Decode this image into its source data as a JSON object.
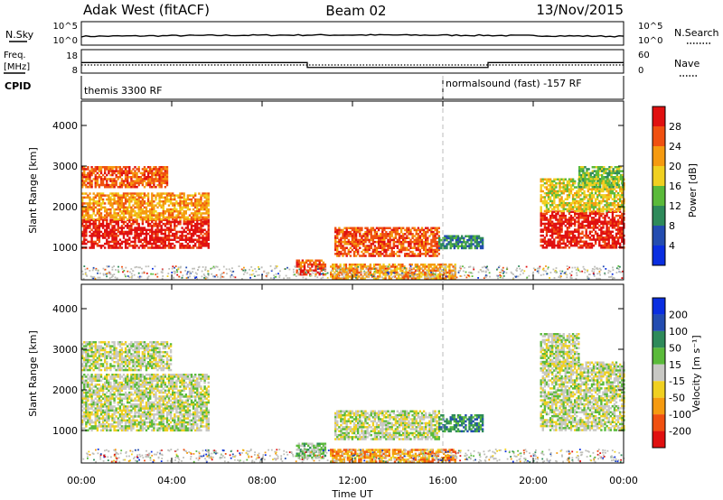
{
  "header": {
    "site": "Adak West (fitACF)",
    "beam": "Beam 02",
    "date": "13/Nov/2015"
  },
  "top_panels": {
    "nsky_label": "N.Sky",
    "nsearch_label": "N.Search",
    "freq_label_1": "Freq.",
    "freq_label_2": "[MHz]",
    "nave_label": "Nave",
    "cpid_label": "CPID",
    "noise_ticks": [
      "10^5",
      "10^0"
    ],
    "freq_ticks": [
      "18",
      "8"
    ],
    "nave_ticks": [
      "60",
      "0"
    ],
    "cpid_segments": [
      {
        "start_h": 0,
        "end_h": 16,
        "label": "themis 3300 RF"
      },
      {
        "start_h": 16,
        "end_h": 24,
        "label": "normalsound (fast) -157 RF"
      }
    ],
    "freq_steps": [
      {
        "start_h": 0,
        "end_h": 10,
        "mhz": 12.5
      },
      {
        "start_h": 10,
        "end_h": 18,
        "mhz": 10.4
      },
      {
        "start_h": 18,
        "end_h": 24,
        "mhz": 12.5
      }
    ]
  },
  "colors": {
    "power": [
      "#0a2ee0",
      "#234cb0",
      "#2e8a5a",
      "#5aba3a",
      "#f0d020",
      "#f59a10",
      "#f05010",
      "#e01010"
    ],
    "velocity": [
      "#e01010",
      "#f05010",
      "#f59a10",
      "#f0d020",
      "#c8c8c4",
      "#5aba3a",
      "#2e8a5a",
      "#234cb0",
      "#0a2ee0"
    ],
    "ground": "#bdbdb8"
  },
  "chart_data": [
    {
      "type": "heatmap",
      "name": "power",
      "ylabel": "Slant Range [km]",
      "xlabel": "Time UT",
      "x_ticks": [
        "00:00",
        "04:00",
        "08:00",
        "12:00",
        "16:00",
        "20:00",
        "00:00"
      ],
      "y_ticks": [
        "1000",
        "2000",
        "3000",
        "4000"
      ],
      "xlim": [
        0,
        24
      ],
      "ylim": [
        200,
        4600
      ],
      "colorbar_label": "Power [dB]",
      "colorbar_ticks": [
        "4",
        "8",
        "12",
        "16",
        "20",
        "24",
        "28"
      ],
      "regions": [
        {
          "t0": 0.0,
          "t1": 5.6,
          "r0": 1000,
          "r1": 1700,
          "level": 7
        },
        {
          "t0": 0.0,
          "t1": 5.6,
          "r0": 1700,
          "r1": 2350,
          "level": 5
        },
        {
          "t0": 0.0,
          "t1": 3.8,
          "r0": 2500,
          "r1": 3000,
          "level": 6
        },
        {
          "t0": 9.5,
          "t1": 10.8,
          "r0": 350,
          "r1": 700,
          "level": 6
        },
        {
          "t0": 11.2,
          "t1": 15.8,
          "r0": 800,
          "r1": 1500,
          "level": 6
        },
        {
          "t0": 15.8,
          "t1": 17.8,
          "r0": 1000,
          "r1": 1300,
          "level": 2
        },
        {
          "t0": 11.0,
          "t1": 16.5,
          "r0": 250,
          "r1": 600,
          "level": 5
        },
        {
          "t0": 20.3,
          "t1": 24.0,
          "r0": 1000,
          "r1": 1900,
          "level": 7
        },
        {
          "t0": 20.3,
          "t1": 24.0,
          "r0": 1900,
          "r1": 2700,
          "level": 4
        },
        {
          "t0": 22.0,
          "t1": 24.0,
          "r0": 2500,
          "r1": 3000,
          "level": 3
        }
      ]
    },
    {
      "type": "heatmap",
      "name": "velocity",
      "ylabel": "Slant Range [km]",
      "xlabel": "Time UT",
      "x_ticks": [
        "00:00",
        "04:00",
        "08:00",
        "12:00",
        "16:00",
        "20:00",
        "00:00"
      ],
      "y_ticks": [
        "1000",
        "2000",
        "3000",
        "4000"
      ],
      "xlim": [
        0,
        24
      ],
      "ylim": [
        200,
        4600
      ],
      "colorbar_label": "Velocity [m s⁻¹]",
      "colorbar_ticks": [
        "200",
        "100",
        "50",
        "15",
        "-15",
        "-50",
        "-100",
        "-200"
      ],
      "regions": [
        {
          "t0": 0.0,
          "t1": 5.6,
          "r0": 1000,
          "r1": 2400,
          "level": 4
        },
        {
          "t0": 0.0,
          "t1": 4.0,
          "r0": 2500,
          "r1": 3200,
          "level": 4
        },
        {
          "t0": 9.5,
          "t1": 10.8,
          "r0": 350,
          "r1": 700,
          "level": 5
        },
        {
          "t0": 11.2,
          "t1": 15.8,
          "r0": 800,
          "r1": 1500,
          "level": 4
        },
        {
          "t0": 15.8,
          "t1": 17.8,
          "r0": 1000,
          "r1": 1400,
          "level": 6
        },
        {
          "t0": 11.0,
          "t1": 16.5,
          "r0": 250,
          "r1": 550,
          "level": 2
        },
        {
          "t0": 20.3,
          "t1": 24.0,
          "r0": 1000,
          "r1": 2700,
          "level": 4
        },
        {
          "t0": 20.3,
          "t1": 22.0,
          "r0": 2600,
          "r1": 3400,
          "level": 4
        }
      ]
    }
  ]
}
